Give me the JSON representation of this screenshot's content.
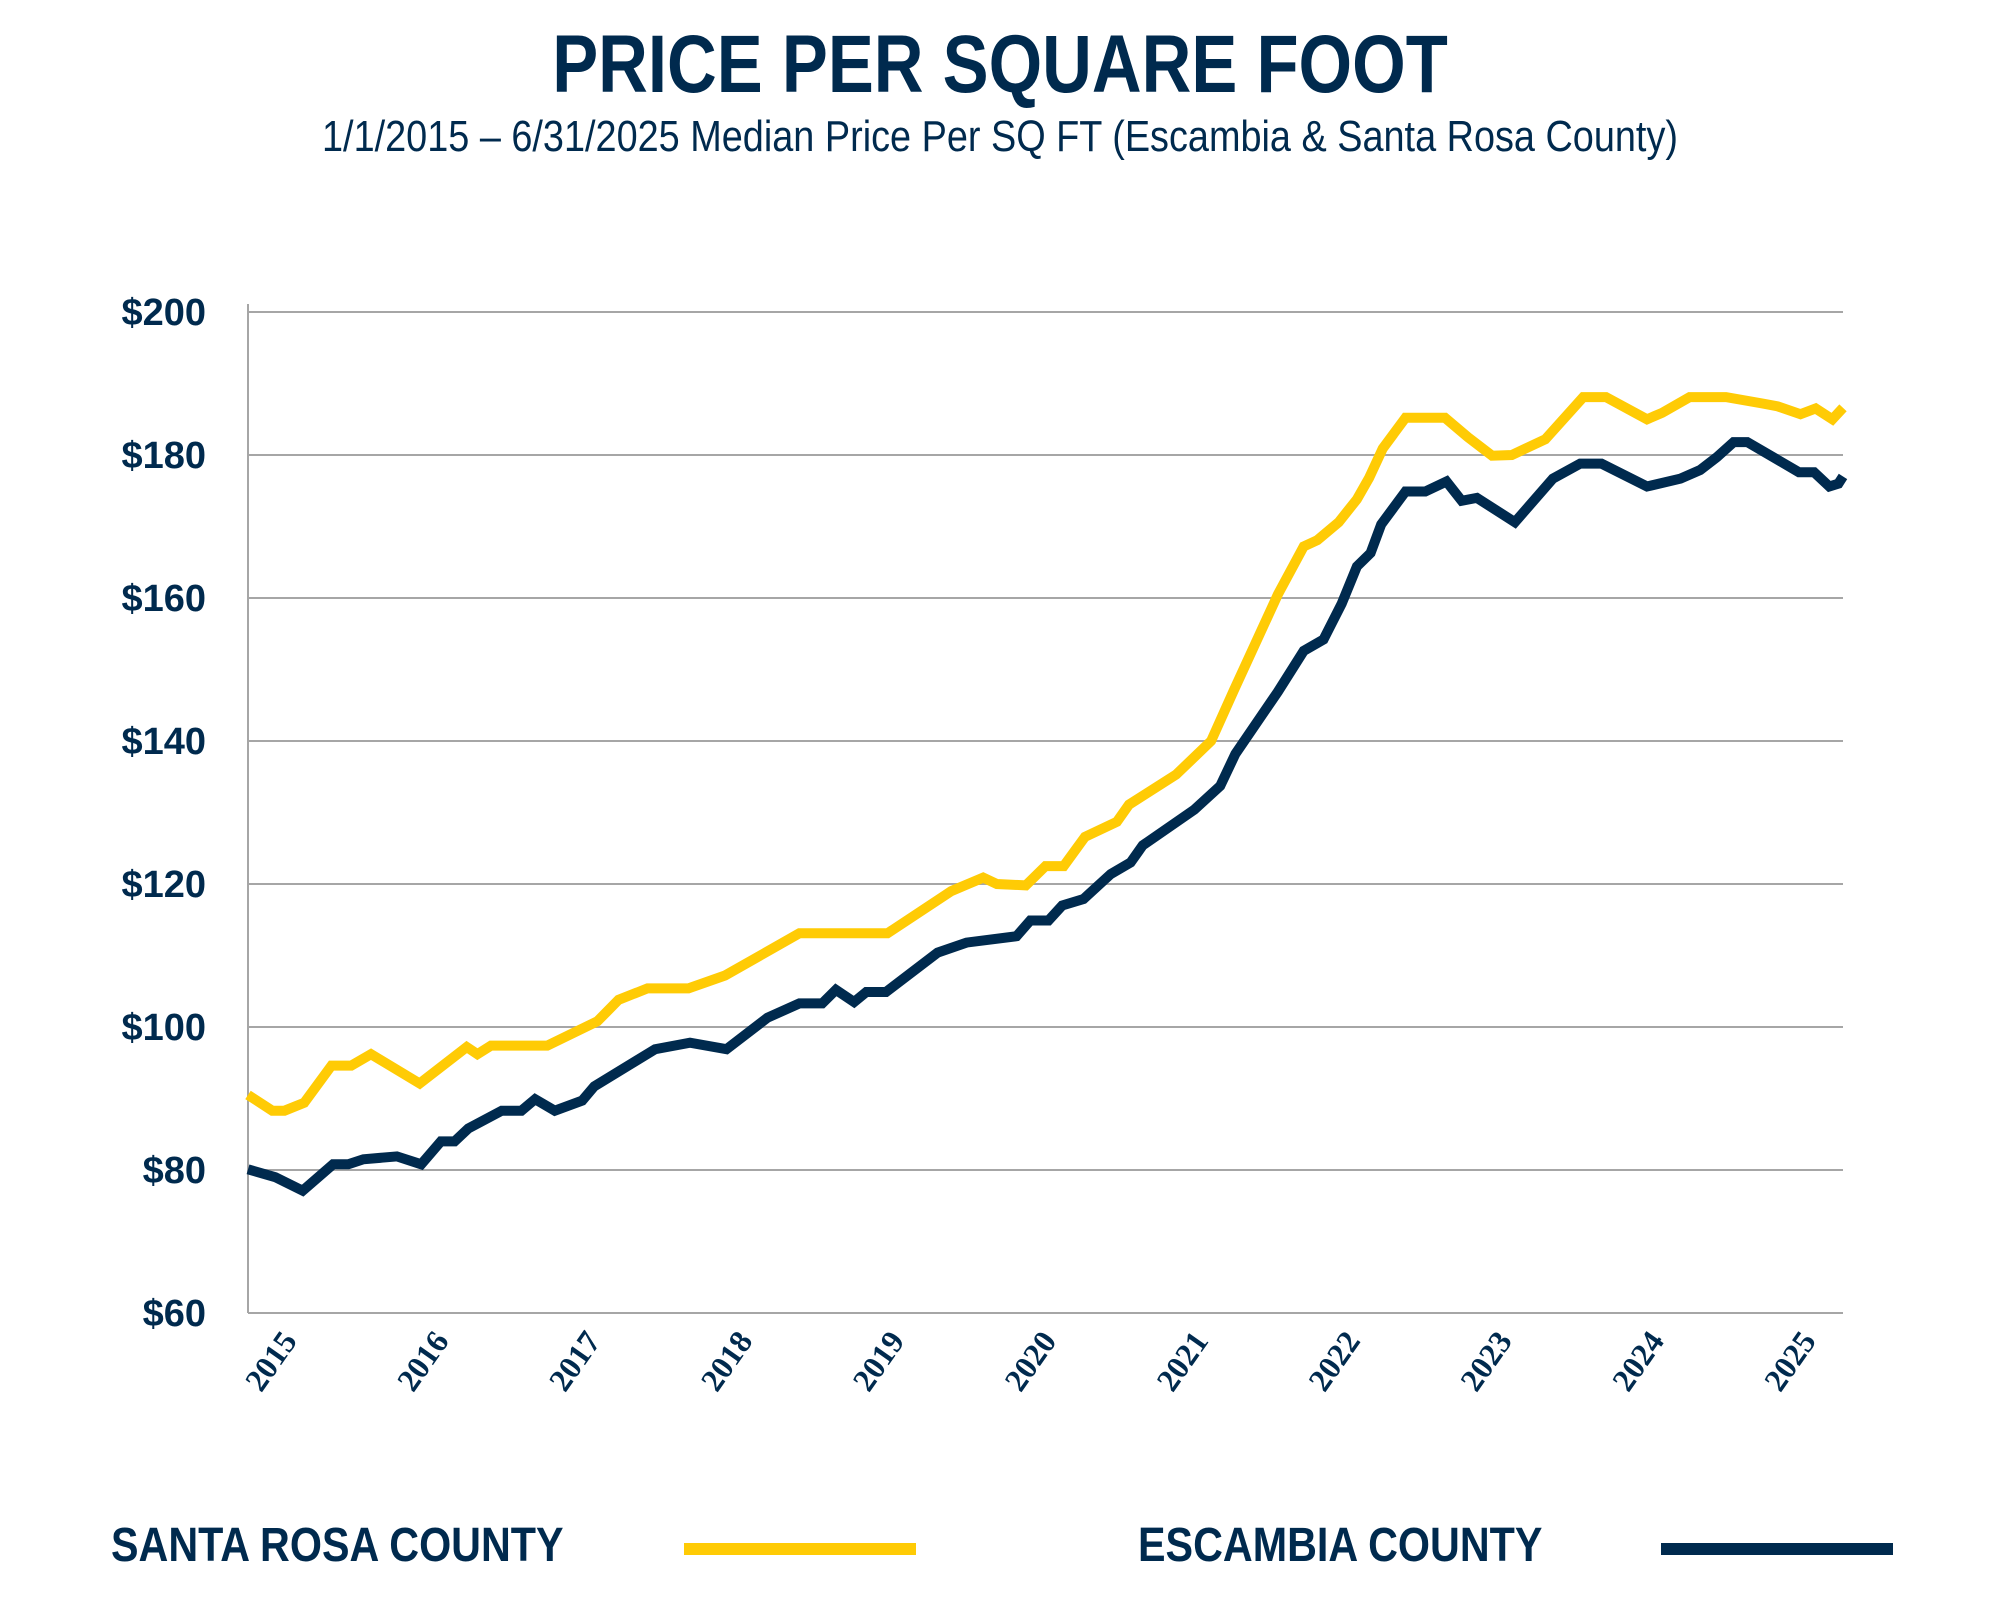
{
  "header": {
    "title": "PRICE PER SQUARE FOOT",
    "subtitle": "1/1/2015 – 6/31/2025  Median Price Per SQ FT (Escambia & Santa Rosa County)"
  },
  "legend": [
    {
      "label": "SANTA ROSA COUNTY",
      "color": "#ffcb05"
    },
    {
      "label": "ESCAMBIA COUNTY",
      "color": "#002a4e"
    }
  ],
  "chart_data": {
    "type": "line",
    "title": "PRICE PER SQUARE FOOT",
    "subtitle": "1/1/2015 – 6/31/2025  Median Price Per SQ FT (Escambia & Santa Rosa County)",
    "xlabel": "",
    "ylabel": "",
    "xlim": [
      2015.0,
      2025.5
    ],
    "ylim": [
      60,
      200
    ],
    "yticks": [
      60,
      80,
      100,
      120,
      140,
      160,
      180,
      200
    ],
    "ytick_labels": [
      "$60",
      "$80",
      "$100",
      "$120",
      "$140",
      "$160",
      "$180",
      "$200"
    ],
    "xticks": [
      2015,
      2016,
      2017,
      2018,
      2019,
      2020,
      2021,
      2022,
      2023,
      2024,
      2025
    ],
    "xtick_labels": [
      "2015",
      "2016",
      "2017",
      "2018",
      "2019",
      "2020",
      "2021",
      "2022",
      "2023",
      "2024",
      "2025"
    ],
    "grid": "horizontal",
    "legend_position": "bottom",
    "series": [
      {
        "name": "SANTA ROSA COUNTY",
        "color": "#ffcb05",
        "x": [
          2015.0,
          2015.16,
          2015.24,
          2015.37,
          2015.55,
          2015.68,
          2015.81,
          2016.13,
          2016.44,
          2016.51,
          2016.6,
          2016.97,
          2017.3,
          2017.44,
          2017.63,
          2017.9,
          2018.14,
          2018.63,
          2019.21,
          2019.63,
          2019.84,
          2019.93,
          2020.12,
          2020.25,
          2020.37,
          2020.51,
          2020.72,
          2020.8,
          2021.11,
          2021.34,
          2021.49,
          2021.78,
          2021.95,
          2022.04,
          2022.18,
          2022.3,
          2022.38,
          2022.47,
          2022.62,
          2022.88,
          2023.03,
          2023.19,
          2023.32,
          2023.54,
          2023.79,
          2023.94,
          2024.21,
          2024.31,
          2024.49,
          2024.73,
          2024.97,
          2025.07,
          2025.22,
          2025.32,
          2025.43,
          2025.5
        ],
        "values": [
          90.5,
          88.3,
          88.3,
          89.4,
          94.6,
          94.6,
          96.2,
          92.1,
          97.2,
          96.2,
          97.4,
          97.4,
          100.8,
          103.8,
          105.4,
          105.4,
          107.2,
          113.1,
          113.1,
          119.0,
          120.9,
          120.0,
          119.8,
          122.5,
          122.5,
          126.6,
          128.7,
          131.1,
          135.3,
          140.0,
          147.1,
          160.5,
          167.2,
          168.1,
          170.6,
          173.8,
          176.8,
          180.9,
          185.2,
          185.2,
          182.5,
          179.9,
          180.0,
          182.2,
          188.1,
          188.1,
          185.0,
          185.9,
          188.1,
          188.1,
          187.2,
          186.8,
          185.7,
          186.5,
          185.0,
          186.6
        ]
      },
      {
        "name": "ESCAMBIA COUNTY",
        "color": "#002a4e",
        "x": [
          2015.0,
          2015.18,
          2015.36,
          2015.56,
          2015.66,
          2015.76,
          2015.98,
          2016.14,
          2016.27,
          2016.36,
          2016.45,
          2016.67,
          2016.8,
          2016.89,
          2017.02,
          2017.2,
          2017.28,
          2017.68,
          2017.91,
          2018.15,
          2018.42,
          2018.63,
          2018.78,
          2018.87,
          2018.99,
          2019.07,
          2019.2,
          2019.54,
          2019.73,
          2020.06,
          2020.15,
          2020.27,
          2020.36,
          2020.5,
          2020.68,
          2020.81,
          2020.89,
          2021.23,
          2021.4,
          2021.5,
          2021.78,
          2021.95,
          2022.08,
          2022.2,
          2022.3,
          2022.39,
          2022.46,
          2022.62,
          2022.75,
          2022.89,
          2022.99,
          2023.09,
          2023.34,
          2023.59,
          2023.77,
          2023.91,
          2024.21,
          2024.43,
          2024.56,
          2024.67,
          2024.78,
          2024.87,
          2025.21,
          2025.31,
          2025.41,
          2025.47,
          2025.5
        ],
        "values": [
          80.1,
          79.0,
          77.1,
          80.8,
          80.8,
          81.5,
          81.9,
          80.8,
          84.0,
          84.0,
          85.8,
          88.3,
          88.3,
          89.9,
          88.3,
          89.7,
          91.7,
          96.9,
          97.8,
          96.9,
          101.3,
          103.3,
          103.3,
          105.2,
          103.5,
          104.9,
          104.9,
          110.4,
          111.8,
          112.7,
          114.9,
          114.9,
          117.0,
          117.9,
          121.4,
          123.0,
          125.4,
          130.4,
          133.7,
          138.2,
          146.9,
          152.6,
          154.2,
          159.2,
          164.4,
          166.3,
          170.3,
          174.9,
          174.9,
          176.3,
          173.6,
          174.0,
          170.6,
          176.7,
          178.8,
          178.8,
          175.6,
          176.7,
          177.9,
          179.7,
          181.8,
          181.8,
          177.6,
          177.6,
          175.6,
          176.0,
          177.0
        ]
      }
    ]
  }
}
